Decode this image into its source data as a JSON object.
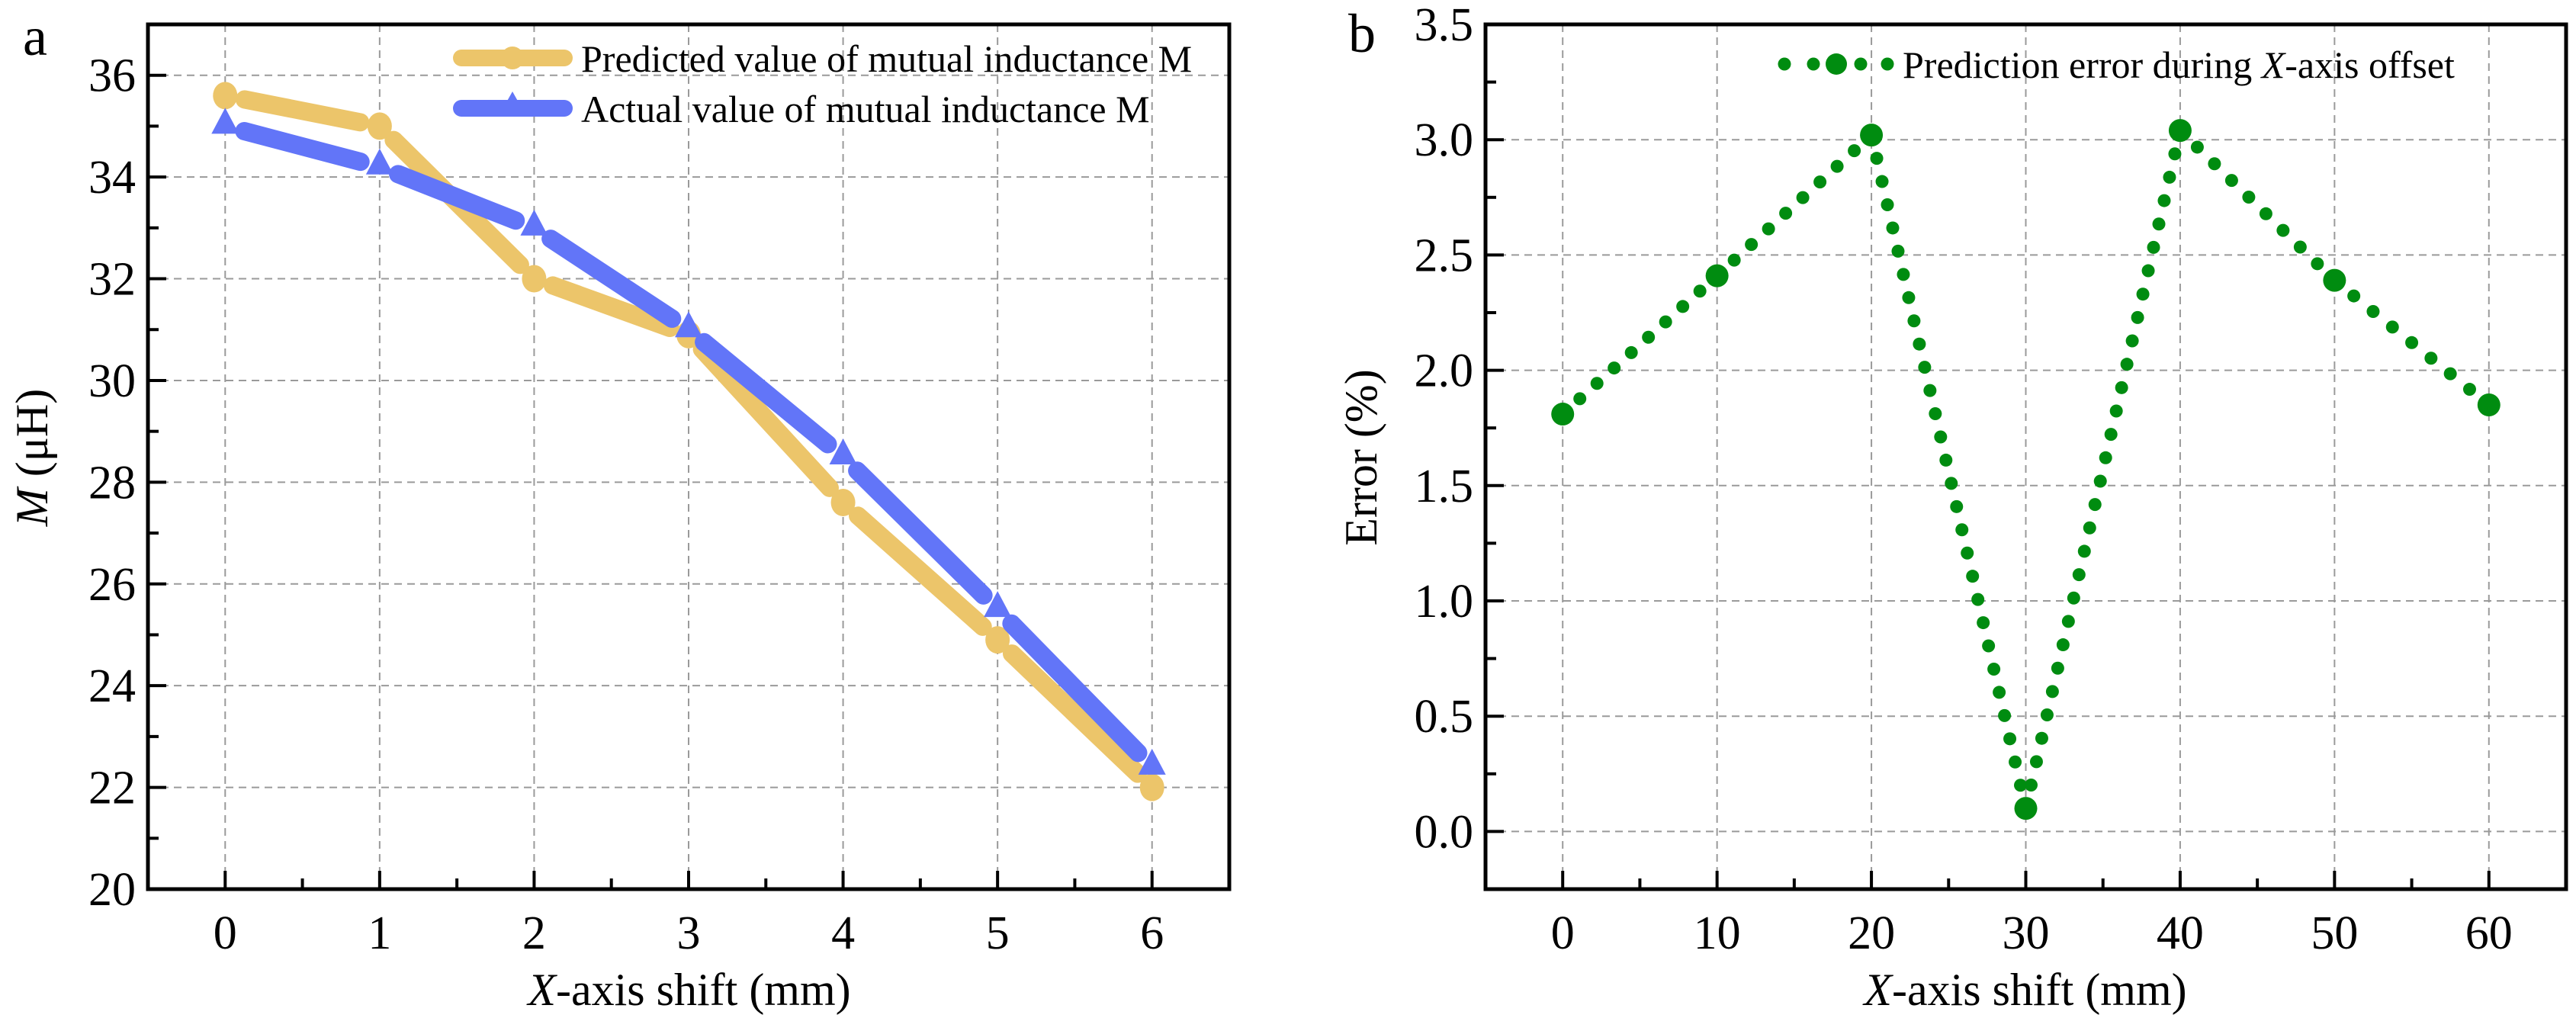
{
  "figure": {
    "panels": [
      "a",
      "b"
    ]
  },
  "colors": {
    "predicted": "#ECC56A",
    "actual": "#6275F8",
    "error": "#008C10",
    "grid": "#9a9a9a",
    "axis": "#000000"
  },
  "chart_data": [
    {
      "panel_label": "a",
      "type": "line",
      "title": "",
      "xlabel_italic": "X",
      "xlabel_rest": "-axis shift (mm)",
      "ylabel_italic": "M",
      "ylabel_rest": " (μH)",
      "x": [
        0,
        1,
        2,
        3,
        4,
        5,
        6
      ],
      "xlim": [
        -0.5,
        6.5
      ],
      "ylim": [
        20,
        37
      ],
      "xticks": [
        0,
        1,
        2,
        3,
        4,
        5,
        6
      ],
      "xtick_labels": [
        "0",
        "1",
        "2",
        "3",
        "4",
        "5",
        "6"
      ],
      "yticks": [
        20,
        22,
        24,
        26,
        28,
        30,
        32,
        34,
        36
      ],
      "ytick_labels": [
        "20",
        "22",
        "24",
        "26",
        "28",
        "30",
        "32",
        "34",
        "36"
      ],
      "grid": true,
      "legend_position": "top-right",
      "series": [
        {
          "name": "Predicted value of mutual inductance M",
          "marker": "circle",
          "color": "#ECC56A",
          "values": [
            35.6,
            35.0,
            32.0,
            30.9,
            27.6,
            24.9,
            22.0
          ]
        },
        {
          "name": "Actual value of mutual inductance M",
          "marker": "triangle",
          "color": "#6275F8",
          "values": [
            35.0,
            34.2,
            33.0,
            31.0,
            28.5,
            25.5,
            22.4
          ]
        }
      ]
    },
    {
      "panel_label": "b",
      "type": "line",
      "title": "",
      "xlabel_italic": "X",
      "xlabel_rest": "-axis shift (mm)",
      "ylabel": "Error (%)",
      "x": [
        0,
        10,
        20,
        30,
        40,
        50,
        60
      ],
      "xlim": [
        -5,
        65
      ],
      "ylim": [
        -0.25,
        3.5
      ],
      "xticks": [
        0,
        10,
        20,
        30,
        40,
        50,
        60
      ],
      "xtick_labels": [
        "0",
        "10",
        "20",
        "30",
        "40",
        "50",
        "60"
      ],
      "yticks": [
        0.0,
        0.5,
        1.0,
        1.5,
        2.0,
        2.5,
        3.0,
        3.5
      ],
      "ytick_labels": [
        "0.0",
        "0.5",
        "1.0",
        "1.5",
        "2.0",
        "2.5",
        "3.0",
        "3.5"
      ],
      "grid": true,
      "legend_position": "top-right",
      "series": [
        {
          "name_prefix": "Prediction error during ",
          "name_italic": "X",
          "name_suffix": "-axis offset",
          "marker": "circle",
          "linestyle": "dotted",
          "color": "#008C10",
          "values": [
            1.81,
            2.41,
            3.02,
            0.1,
            3.04,
            2.39,
            1.85
          ]
        }
      ]
    }
  ]
}
